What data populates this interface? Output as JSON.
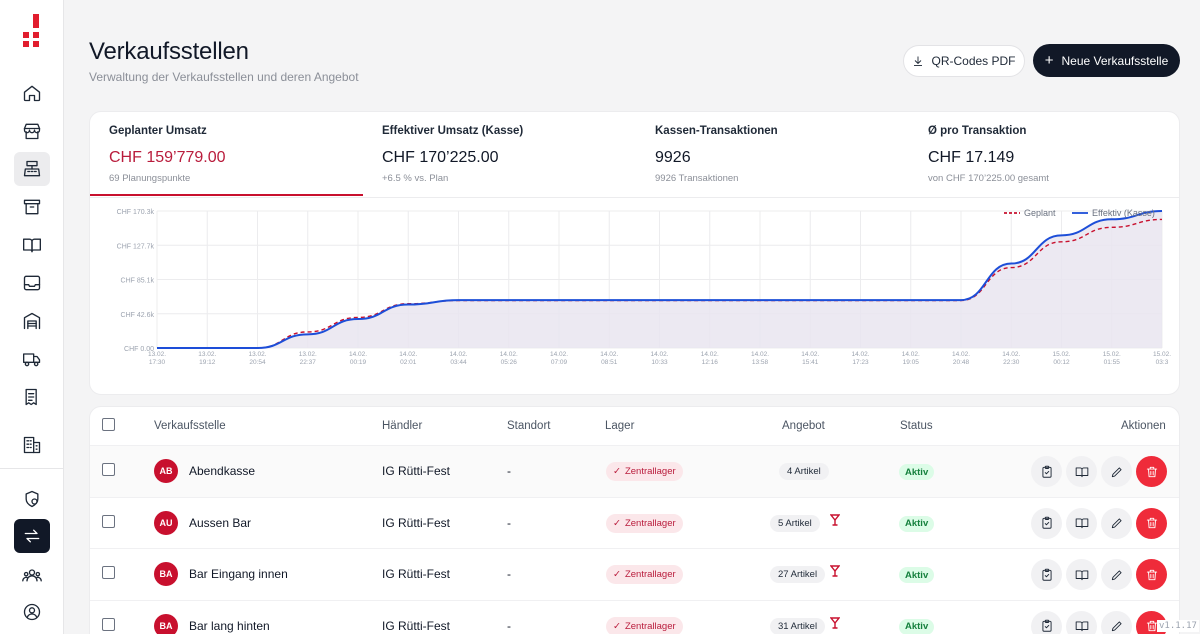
{
  "nav": {
    "items": [
      {
        "name": "home-icon"
      },
      {
        "name": "store-icon"
      },
      {
        "name": "cash-register-icon"
      },
      {
        "name": "archive-icon"
      },
      {
        "name": "book-open-icon"
      },
      {
        "name": "inbox-icon"
      },
      {
        "name": "warehouse-icon"
      },
      {
        "name": "truck-icon"
      },
      {
        "name": "receipt-icon"
      },
      {
        "name": "building-icon"
      },
      {
        "name": "shield-settings-icon"
      },
      {
        "name": "arrows-exchange-icon"
      },
      {
        "name": "users-group-icon"
      },
      {
        "name": "user-circle-icon"
      }
    ]
  },
  "header": {
    "title": "Verkaufsstellen",
    "subtitle": "Verwaltung der Verkaufsstellen und deren Angebot",
    "qr_button": "QR-Codes PDF",
    "new_button": "Neue Verkaufsstelle"
  },
  "kpis": [
    {
      "label": "Geplanter Umsatz",
      "value": "CHF 159’779.00",
      "sub": "69 Planungspunkte"
    },
    {
      "label": "Effektiver Umsatz (Kasse)",
      "value": "CHF 170’225.00",
      "sub": "+6.5 % vs. Plan"
    },
    {
      "label": "Kassen-Transaktionen",
      "value": "9926",
      "sub": "9926 Transaktionen"
    },
    {
      "label": "Ø pro Transaktion",
      "value": "CHF 17.149",
      "sub": "von CHF 170’225.00 gesamt"
    }
  ],
  "chart_data": {
    "type": "line",
    "legend": [
      {
        "name": "Geplant",
        "color": "#c8102e",
        "style": "dashed"
      },
      {
        "name": "Effektiv (Kasse)",
        "color": "#1d4ed8",
        "style": "solid"
      }
    ],
    "legend_position": "top-right",
    "y_ticks": [
      "CHF 0.00",
      "CHF 42.6k",
      "CHF 85.1k",
      "CHF 127.7k",
      "CHF 170.3k"
    ],
    "ylim": [
      0,
      170300
    ],
    "x_ticks": [
      [
        "13.02.",
        "17:30"
      ],
      [
        "13.02.",
        "19:12"
      ],
      [
        "13.02.",
        "20:54"
      ],
      [
        "13.02.",
        "22:37"
      ],
      [
        "14.02.",
        "00:19"
      ],
      [
        "14.02.",
        "02:01"
      ],
      [
        "14.02.",
        "03:44"
      ],
      [
        "14.02.",
        "05:26"
      ],
      [
        "14.02.",
        "07:09"
      ],
      [
        "14.02.",
        "08:51"
      ],
      [
        "14.02.",
        "10:33"
      ],
      [
        "14.02.",
        "12:16"
      ],
      [
        "14.02.",
        "13:58"
      ],
      [
        "14.02.",
        "15:41"
      ],
      [
        "14.02.",
        "17:23"
      ],
      [
        "14.02.",
        "19:05"
      ],
      [
        "14.02.",
        "20:48"
      ],
      [
        "14.02.",
        "22:30"
      ],
      [
        "15.02.",
        "00:12"
      ],
      [
        "15.02.",
        "01:55"
      ],
      [
        "15.02.",
        "03:3"
      ]
    ],
    "grid": true,
    "series": [
      {
        "name": "Geplant",
        "x_index": [
          0,
          2,
          3,
          4,
          5,
          6,
          8,
          10,
          12,
          14,
          16,
          17,
          18,
          19,
          20
        ],
        "values": [
          0,
          0,
          20000,
          38000,
          55000,
          59000,
          59000,
          59000,
          59000,
          59000,
          59000,
          100000,
          132000,
          150000,
          159779
        ]
      },
      {
        "name": "Effektiv (Kasse)",
        "x_index": [
          0,
          2,
          3,
          4,
          5,
          6,
          8,
          10,
          12,
          14,
          16,
          17,
          18,
          19,
          20
        ],
        "values": [
          0,
          0,
          17000,
          36000,
          54000,
          59500,
          59500,
          59500,
          59500,
          59500,
          59500,
          105000,
          140000,
          160000,
          170225
        ]
      }
    ]
  },
  "table": {
    "headers": {
      "name": "Verkaufsstelle",
      "haendler": "Händler",
      "standort": "Standort",
      "lager": "Lager",
      "angebot": "Angebot",
      "status": "Status",
      "aktionen": "Aktionen"
    },
    "rows": [
      {
        "initials": "AB",
        "name": "Abendkasse",
        "haendler": "IG Rütti-Fest",
        "standort": "-",
        "lager": "Zentrallager",
        "angebot": "4 Artikel",
        "cocktail": false,
        "status": "Aktiv"
      },
      {
        "initials": "AU",
        "name": "Aussen Bar",
        "haendler": "IG Rütti-Fest",
        "standort": "-",
        "lager": "Zentrallager",
        "angebot": "5 Artikel",
        "cocktail": true,
        "status": "Aktiv"
      },
      {
        "initials": "BA",
        "name": "Bar Eingang innen",
        "haendler": "IG Rütti-Fest",
        "standort": "-",
        "lager": "Zentrallager",
        "angebot": "27 Artikel",
        "cocktail": true,
        "status": "Aktiv"
      },
      {
        "initials": "BA",
        "name": "Bar lang hinten",
        "haendler": "IG Rütti-Fest",
        "standort": "-",
        "lager": "Zentrallager",
        "angebot": "31 Artikel",
        "cocktail": true,
        "status": "Aktiv"
      }
    ],
    "row_actions": [
      "clipboard-check-icon",
      "book-open-icon",
      "pencil-icon",
      "trash-icon"
    ]
  },
  "version": "v1.1.17"
}
